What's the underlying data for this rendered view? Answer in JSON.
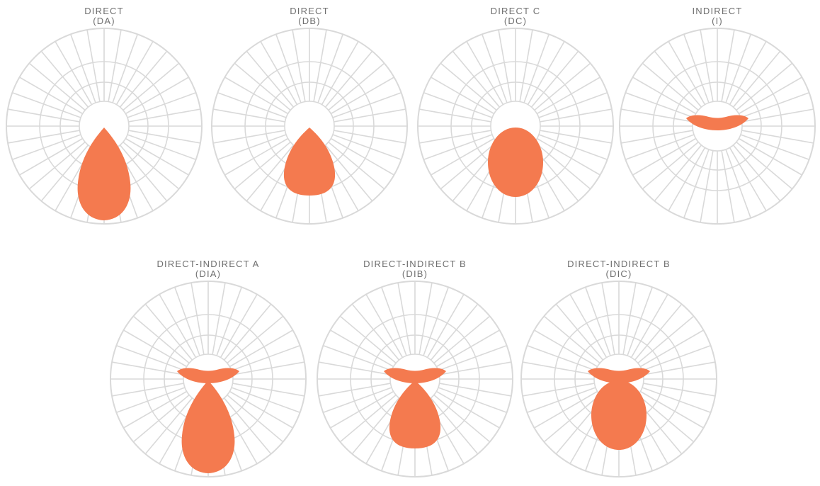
{
  "palette": {
    "grid": "#d9d9d9",
    "fill": "#f47a4f",
    "label": "#6f6f6f"
  },
  "diagrams": [
    {
      "id": "da",
      "title": "DIRECT",
      "code": "(DA)",
      "shapes": [
        "direct-narrow"
      ]
    },
    {
      "id": "db",
      "title": "DIRECT",
      "code": "(DB)",
      "shapes": [
        "direct-medium"
      ]
    },
    {
      "id": "dc",
      "title": "DIRECT C",
      "code": "(DC)",
      "shapes": [
        "direct-wide"
      ]
    },
    {
      "id": "i",
      "title": "INDIRECT",
      "code": "(I)",
      "shapes": [
        "indirect"
      ]
    },
    {
      "id": "dia",
      "title": "DIRECT-INDIRECT A",
      "code": "(DIA)",
      "shapes": [
        "indirect",
        "direct-narrow"
      ]
    },
    {
      "id": "dib",
      "title": "DIRECT-INDIRECT B",
      "code": "(DIB)",
      "shapes": [
        "indirect",
        "direct-medium"
      ]
    },
    {
      "id": "dic",
      "title": "DIRECT-INDIRECT B",
      "code": "(DIC)",
      "shapes": [
        "indirect",
        "direct-wide"
      ]
    }
  ]
}
